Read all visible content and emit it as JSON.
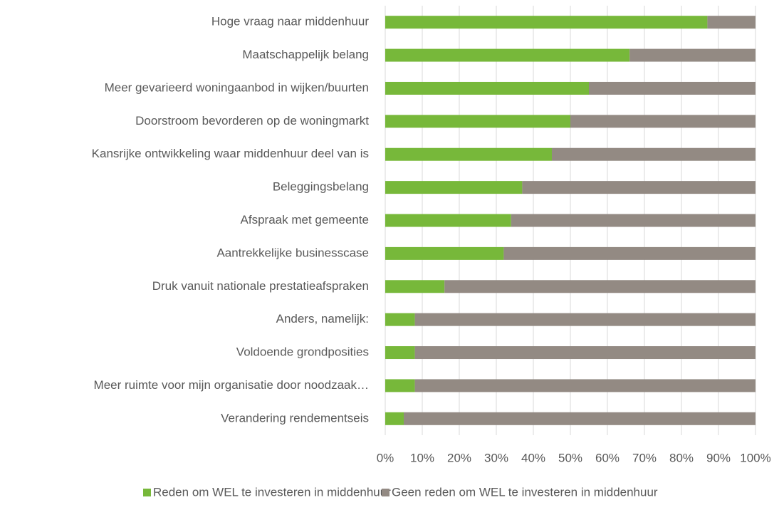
{
  "chart_data": {
    "type": "stacked_barh",
    "categories": [
      "Hoge vraag naar middenhuur",
      "Maatschappelijk belang",
      "Meer gevarieerd woningaanbod in wijken/buurten",
      "Doorstroom bevorderen op de woningmarkt",
      "Kansrijke ontwikkeling waar middenhuur deel van is",
      "Beleggingsbelang",
      "Afspraak met gemeente",
      "Aantrekkelijke businesscase",
      "Druk vanuit nationale prestatieafspraken",
      "Anders, namelijk:",
      "Voldoende grondposities",
      "Meer ruimte voor mijn organisatie door noodzaak…",
      "Verandering rendementseis"
    ],
    "series": [
      {
        "name": "Reden om WEL te investeren in middenhuur",
        "color": "#77b83a",
        "values": [
          87,
          66,
          55,
          50,
          45,
          37,
          34,
          32,
          16,
          8,
          8,
          8,
          5
        ]
      },
      {
        "name": "Geen reden om WEL te investeren in middenhuur",
        "color": "#938a83",
        "values": [
          13,
          34,
          45,
          50,
          55,
          63,
          66,
          68,
          84,
          92,
          92,
          92,
          95
        ]
      }
    ],
    "xlim": [
      0,
      100
    ],
    "xticks": [
      {
        "value": 0,
        "label": "0%"
      },
      {
        "value": 10,
        "label": "10%"
      },
      {
        "value": 20,
        "label": "20%"
      },
      {
        "value": 30,
        "label": "30%"
      },
      {
        "value": 40,
        "label": "40%"
      },
      {
        "value": 50,
        "label": "50%"
      },
      {
        "value": 60,
        "label": "60%"
      },
      {
        "value": 70,
        "label": "70%"
      },
      {
        "value": 80,
        "label": "80%"
      },
      {
        "value": 90,
        "label": "90%"
      },
      {
        "value": 100,
        "label": "100%"
      }
    ],
    "grid": true,
    "legend": "bottom"
  }
}
